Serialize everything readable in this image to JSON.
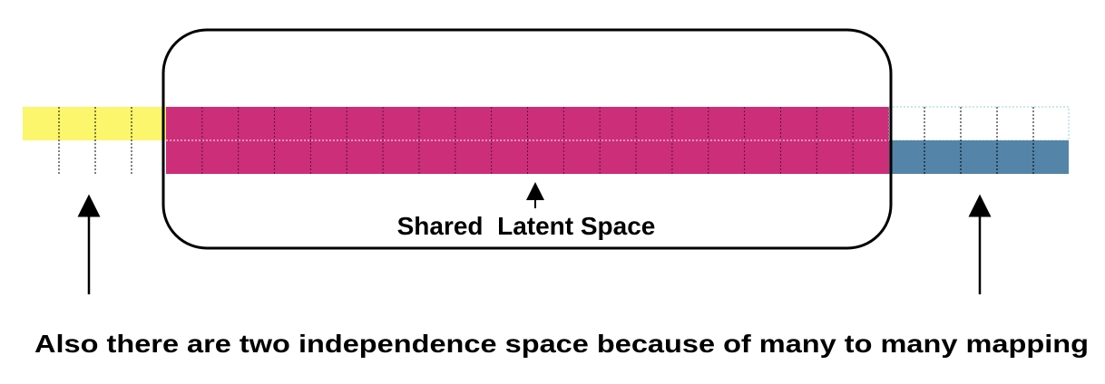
{
  "diagram": {
    "shared_label": "Shared  Latent Space",
    "caption": "Also there are two independence space because of many to many mapping",
    "colors": {
      "left_space": "#fbf66c",
      "shared_space": "#cc2e79",
      "right_space": "#5484a8",
      "outline": "#000000",
      "grid_dotted": "#000000",
      "grid_light": "#8fd6d6"
    }
  }
}
